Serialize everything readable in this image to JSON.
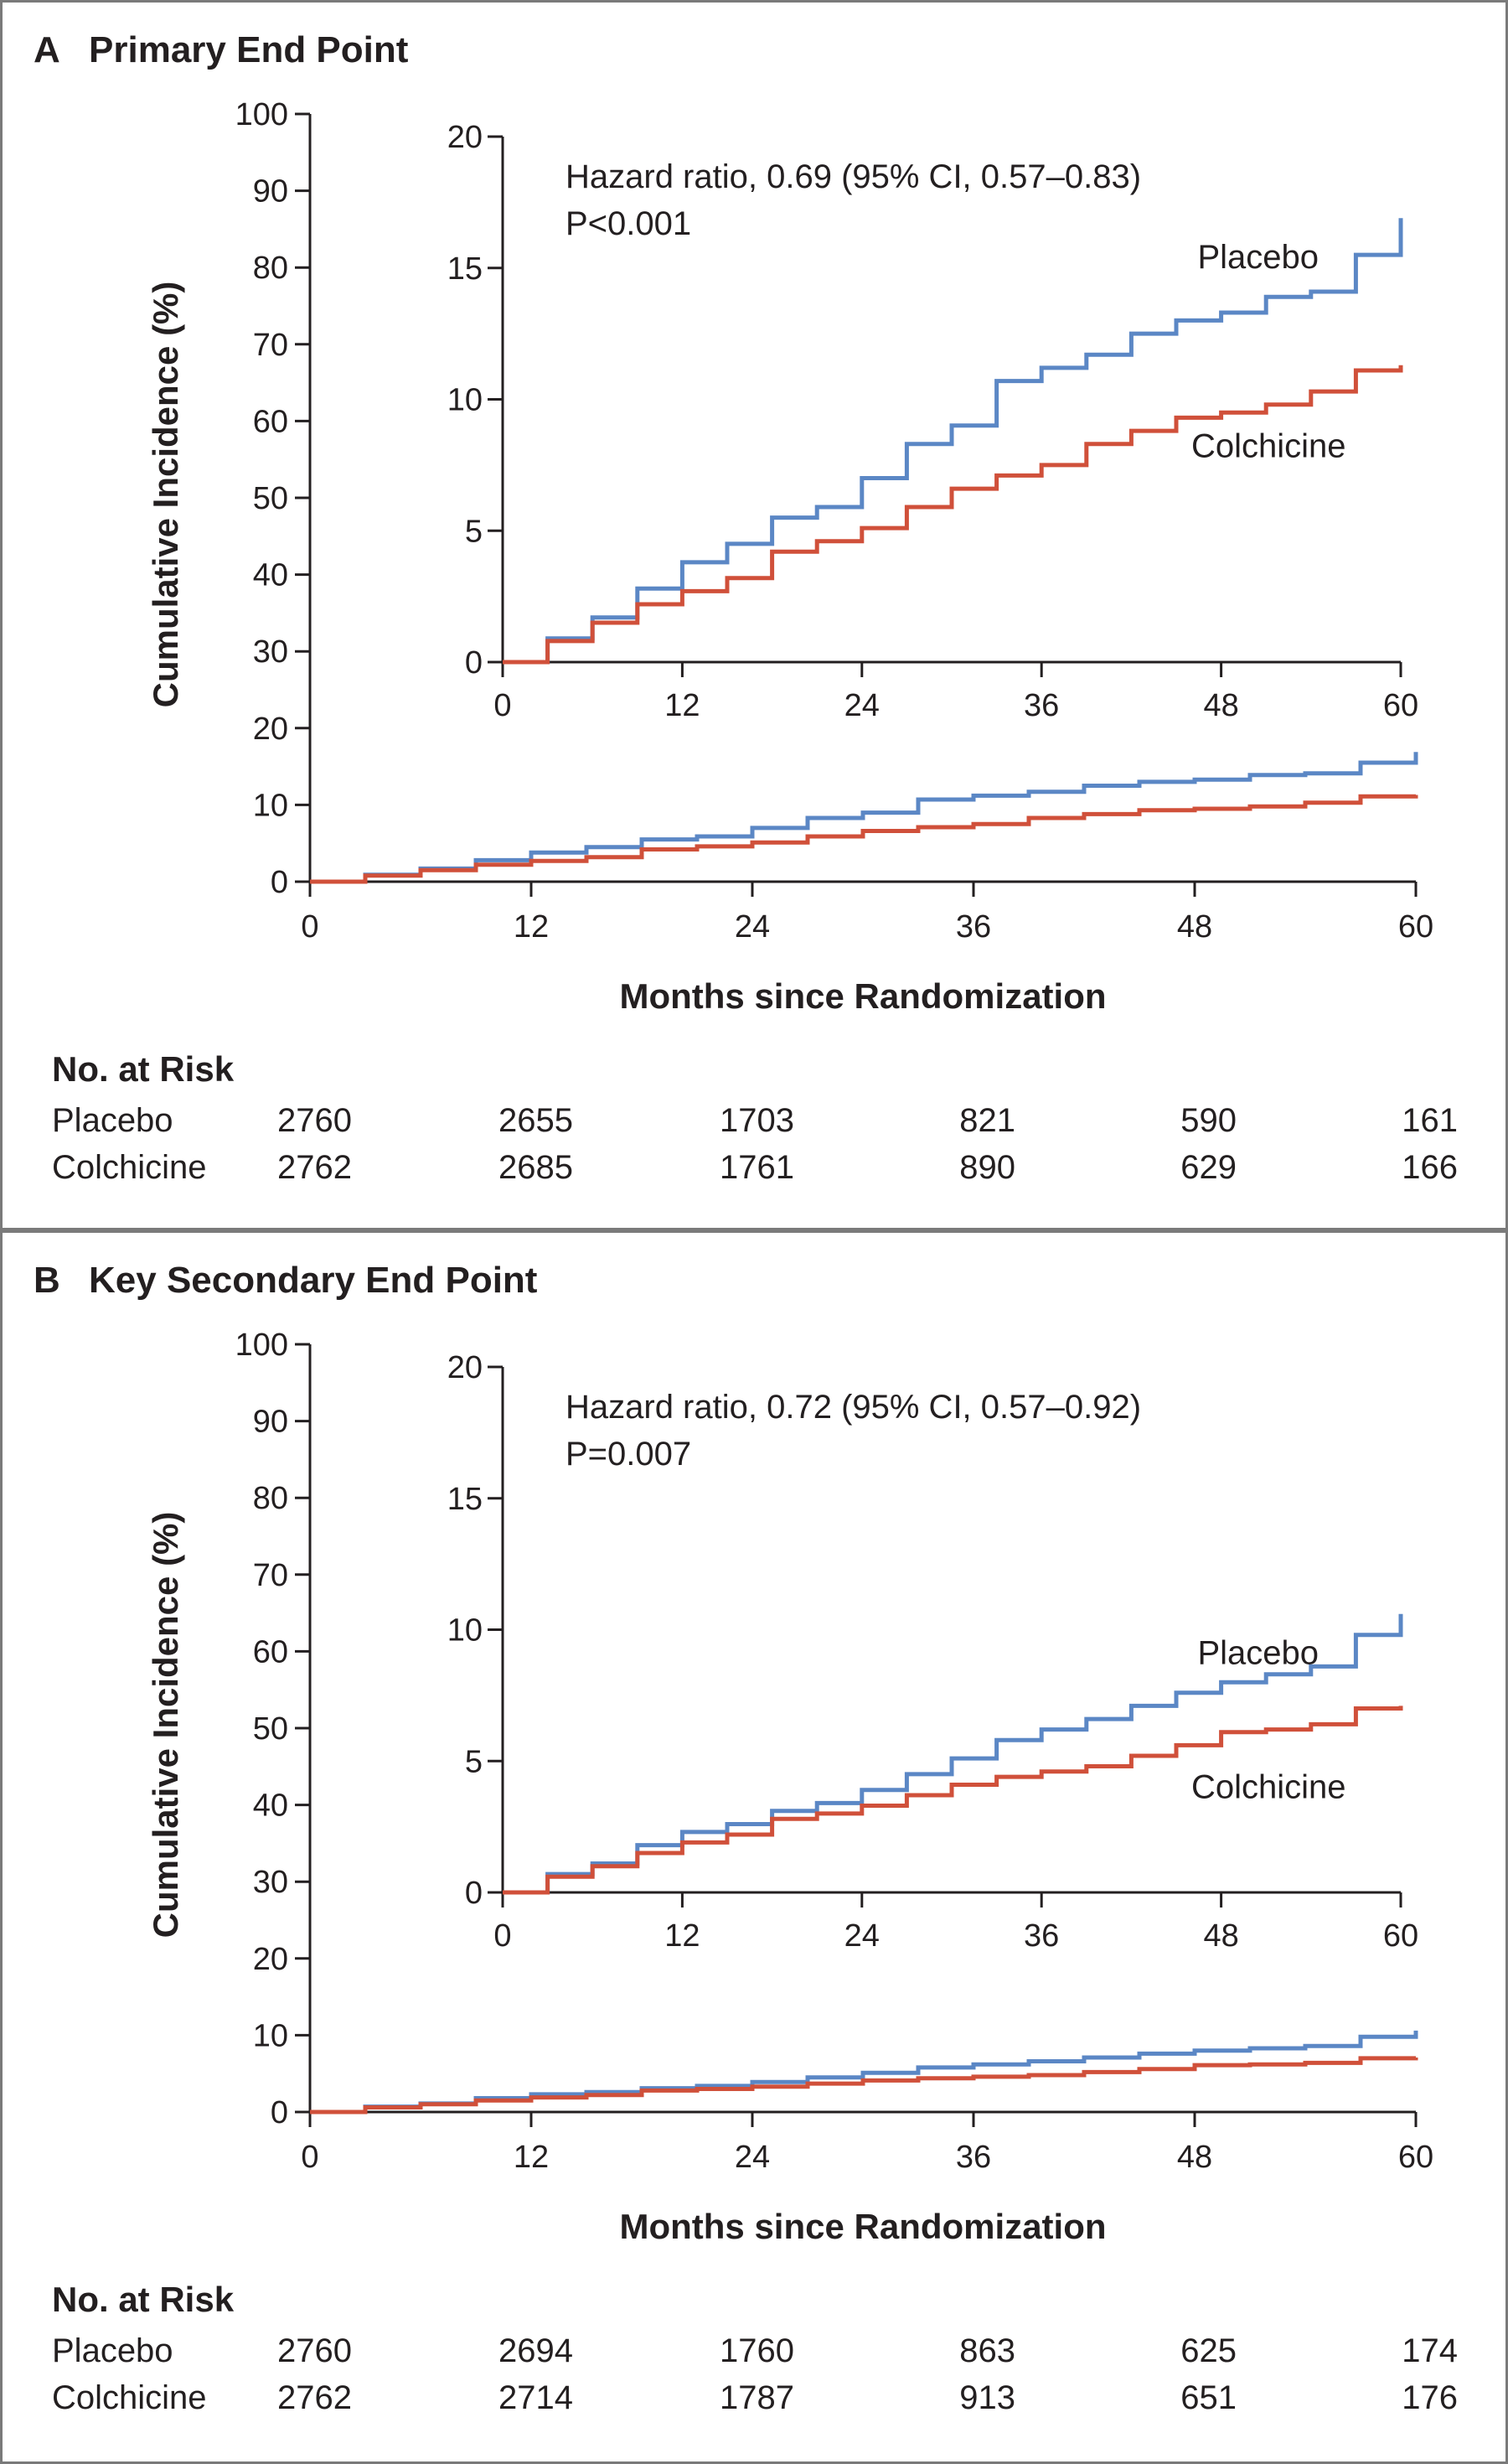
{
  "chart_data": [
    {
      "panel_letter": "A",
      "title": "Primary End Point",
      "type": "line",
      "subtype": "step (Kaplan-Meier cumulative incidence)",
      "xlabel": "Months since Randomization",
      "ylabel": "Cumulative Incidence (%)",
      "xlim": [
        0,
        60
      ],
      "ylim": [
        0,
        100
      ],
      "xticks": [
        0,
        12,
        24,
        36,
        48,
        60
      ],
      "yticks": [
        0,
        10,
        20,
        30,
        40,
        50,
        60,
        70,
        80,
        90,
        100
      ],
      "grid": false,
      "series": [
        {
          "name": "Placebo",
          "color": "#5b87c5",
          "x": [
            0,
            3,
            6,
            9,
            12,
            15,
            18,
            21,
            24,
            27,
            30,
            33,
            36,
            39,
            42,
            45,
            48,
            51,
            54,
            57,
            60
          ],
          "y": [
            0,
            0.9,
            1.7,
            2.8,
            3.8,
            4.5,
            5.5,
            5.9,
            7.0,
            8.3,
            9.0,
            10.7,
            11.2,
            11.7,
            12.5,
            13.0,
            13.3,
            13.9,
            14.1,
            15.5,
            16.9
          ]
        },
        {
          "name": "Colchicine",
          "color": "#d0503a",
          "x": [
            0,
            3,
            6,
            9,
            12,
            15,
            18,
            21,
            24,
            27,
            30,
            33,
            36,
            39,
            42,
            45,
            48,
            51,
            54,
            57,
            60
          ],
          "y": [
            0,
            0.8,
            1.5,
            2.2,
            2.7,
            3.2,
            4.2,
            4.6,
            5.1,
            5.9,
            6.6,
            7.1,
            7.5,
            8.3,
            8.8,
            9.3,
            9.5,
            9.8,
            10.3,
            11.1,
            11.3
          ]
        }
      ],
      "inset": {
        "xlim": [
          0,
          60
        ],
        "ylim": [
          0,
          20
        ],
        "xticks": [
          0,
          12,
          24,
          36,
          48,
          60
        ],
        "yticks": [
          0,
          5,
          10,
          15,
          20
        ],
        "annotation": [
          "Hazard ratio, 0.69 (95% CI, 0.57–0.83)",
          "P<0.001"
        ],
        "series_labels": [
          "Placebo",
          "Colchicine"
        ]
      },
      "risk_table": {
        "title": "No. at Risk",
        "rows": [
          {
            "label": "Placebo",
            "values": [
              "2760",
              "2655",
              "1703",
              "821",
              "590",
              "161"
            ]
          },
          {
            "label": "Colchicine",
            "values": [
              "2762",
              "2685",
              "1761",
              "890",
              "629",
              "166"
            ]
          }
        ]
      }
    },
    {
      "panel_letter": "B",
      "title": "Key Secondary End Point",
      "type": "line",
      "subtype": "step (Kaplan-Meier cumulative incidence)",
      "xlabel": "Months since Randomization",
      "ylabel": "Cumulative Incidence (%)",
      "xlim": [
        0,
        60
      ],
      "ylim": [
        0,
        100
      ],
      "xticks": [
        0,
        12,
        24,
        36,
        48,
        60
      ],
      "yticks": [
        0,
        10,
        20,
        30,
        40,
        50,
        60,
        70,
        80,
        90,
        100
      ],
      "grid": false,
      "series": [
        {
          "name": "Placebo",
          "color": "#5b87c5",
          "x": [
            0,
            3,
            6,
            9,
            12,
            15,
            18,
            21,
            24,
            27,
            30,
            33,
            36,
            39,
            42,
            45,
            48,
            51,
            54,
            57,
            60
          ],
          "y": [
            0,
            0.7,
            1.1,
            1.8,
            2.3,
            2.6,
            3.1,
            3.4,
            3.9,
            4.5,
            5.1,
            5.8,
            6.2,
            6.6,
            7.1,
            7.6,
            8.0,
            8.3,
            8.6,
            9.8,
            10.6
          ]
        },
        {
          "name": "Colchicine",
          "color": "#d0503a",
          "x": [
            0,
            3,
            6,
            9,
            12,
            15,
            18,
            21,
            24,
            27,
            30,
            33,
            36,
            39,
            42,
            45,
            48,
            51,
            54,
            57,
            60
          ],
          "y": [
            0,
            0.6,
            1.0,
            1.5,
            1.9,
            2.2,
            2.8,
            3.0,
            3.3,
            3.7,
            4.1,
            4.4,
            4.6,
            4.8,
            5.2,
            5.6,
            6.1,
            6.2,
            6.4,
            7.0,
            7.1
          ]
        }
      ],
      "inset": {
        "xlim": [
          0,
          60
        ],
        "ylim": [
          0,
          20
        ],
        "xticks": [
          0,
          12,
          24,
          36,
          48,
          60
        ],
        "yticks": [
          0,
          5,
          10,
          15,
          20
        ],
        "annotation": [
          "Hazard ratio, 0.72 (95% CI, 0.57–0.92)",
          "P=0.007"
        ],
        "series_labels": [
          "Placebo",
          "Colchicine"
        ]
      },
      "risk_table": {
        "title": "No. at Risk",
        "rows": [
          {
            "label": "Placebo",
            "values": [
              "2760",
              "2694",
              "1760",
              "863",
              "625",
              "174"
            ]
          },
          {
            "label": "Colchicine",
            "values": [
              "2762",
              "2714",
              "1787",
              "913",
              "651",
              "176"
            ]
          }
        ]
      }
    }
  ]
}
